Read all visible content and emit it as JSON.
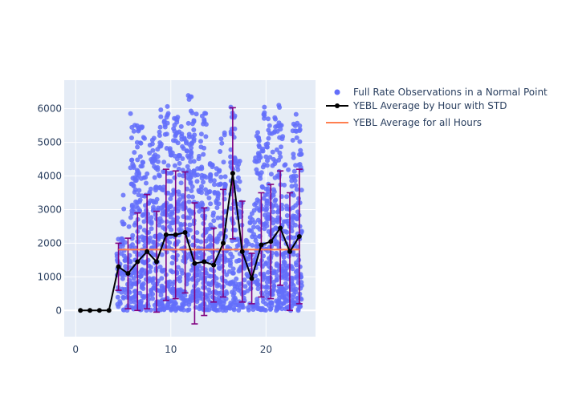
{
  "chart_data": {
    "type": "scatter",
    "xlim": [
      -1.2,
      25.2
    ],
    "ylim": [
      -780,
      6850
    ],
    "x_ticks": [
      0,
      10,
      20
    ],
    "y_ticks": [
      0,
      1000,
      2000,
      3000,
      4000,
      5000,
      6000
    ],
    "grid": true,
    "legend_position": "top-right",
    "series": [
      {
        "name": "Full Rate Observations in a Normal Point",
        "type": "scatter",
        "color": "#636efa",
        "hour_bins": [
          4.5,
          5,
          5.5,
          6,
          6.5,
          7,
          7.5,
          8,
          8.5,
          9,
          9.5,
          10,
          10.5,
          11,
          11.5,
          12,
          12.5,
          13,
          13.5,
          14,
          14.5,
          15,
          15.5,
          16,
          16.5,
          17,
          17.5,
          18,
          18.5,
          19,
          19.5,
          20,
          20.5,
          21,
          21.5,
          22,
          22.5,
          23,
          23.5
        ],
        "bin_max": [
          2200,
          3450,
          2600,
          6050,
          5550,
          5750,
          4300,
          5200,
          5000,
          6150,
          6100,
          5300,
          6000,
          5900,
          5200,
          6400,
          6000,
          5500,
          6100,
          4500,
          4400,
          4850,
          5400,
          2300,
          6150,
          4650,
          3300,
          2100,
          3000,
          5450,
          5100,
          6050,
          5700,
          5900,
          6300,
          4650,
          4200,
          5850,
          5600
        ]
      },
      {
        "name": "YEBL Average by Hour with STD",
        "type": "line",
        "color": "#000000",
        "error_color": "#800080",
        "x": [
          0.5,
          1.5,
          2.5,
          3.5,
          4.5,
          5.5,
          6.5,
          7.5,
          8.5,
          9.5,
          10.5,
          11.5,
          12.5,
          13.5,
          14.5,
          15.5,
          16.5,
          17.5,
          18.5,
          19.5,
          20.5,
          21.5,
          22.5,
          23.5
        ],
        "y": [
          0,
          0,
          0,
          0,
          1300,
          1100,
          1450,
          1750,
          1450,
          2250,
          2250,
          2320,
          1400,
          1450,
          1350,
          2000,
          4080,
          1750,
          950,
          1950,
          2050,
          2450,
          1750,
          2200
        ],
        "std": [
          0,
          0,
          0,
          0,
          700,
          1050,
          1450,
          1700,
          1500,
          1950,
          1900,
          1800,
          1800,
          1600,
          1100,
          1600,
          1950,
          1500,
          750,
          1550,
          1700,
          1700,
          1750,
          2000
        ]
      },
      {
        "name": "YEBL Average for all Hours",
        "type": "hline",
        "color": "#ff7f50",
        "x_range": [
          4.5,
          23.5
        ],
        "value": 1810
      }
    ]
  }
}
